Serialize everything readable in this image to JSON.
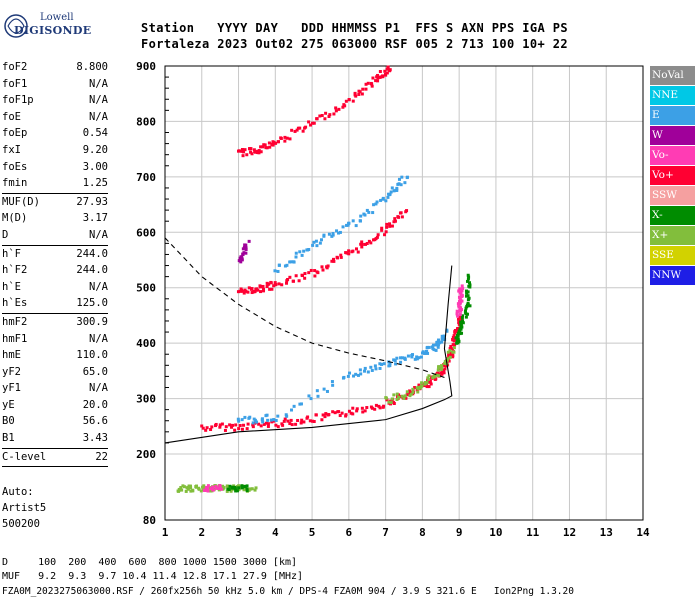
{
  "logo": {
    "line1": "Lowell",
    "line2": "DIGISONDE"
  },
  "header": {
    "line1": "Station   YYYY DAY   DDD HHMMSS P1  FFS S AXN PPS IGA PS",
    "line2": "Fortaleza 2023 Out02 275 063000 RSF 005 2 713 100 10+ 22"
  },
  "params": [
    {
      "k": "foF2",
      "v": "8.800"
    },
    {
      "k": "foF1",
      "v": "N/A"
    },
    {
      "k": "foF1p",
      "v": "N/A"
    },
    {
      "k": "foE",
      "v": "N/A"
    },
    {
      "k": "foEp",
      "v": "0.54"
    },
    {
      "k": "fxI",
      "v": "9.20"
    },
    {
      "k": "foEs",
      "v": "3.00"
    },
    {
      "k": "fmin",
      "v": "1.25"
    },
    {
      "sep": true
    },
    {
      "k": "MUF(D)",
      "v": "27.93"
    },
    {
      "k": "M(D)",
      "v": "3.17"
    },
    {
      "k": "D",
      "v": "N/A"
    },
    {
      "sep": true
    },
    {
      "k": "h`F",
      "v": "244.0"
    },
    {
      "k": "h`F2",
      "v": "244.0"
    },
    {
      "k": "h`E",
      "v": "N/A"
    },
    {
      "k": "h`Es",
      "v": "125.0"
    },
    {
      "sep": true
    },
    {
      "k": "hmF2",
      "v": "300.9"
    },
    {
      "k": "hmF1",
      "v": "N/A"
    },
    {
      "k": "hmE",
      "v": "110.0"
    },
    {
      "k": "yF2",
      "v": "65.0"
    },
    {
      "k": "yF1",
      "v": "N/A"
    },
    {
      "k": "yE",
      "v": "20.0"
    },
    {
      "k": "B0",
      "v": "56.6"
    },
    {
      "k": "B1",
      "v": "3.43"
    },
    {
      "sep": true
    },
    {
      "k": "C-level",
      "v": "22"
    },
    {
      "sep": true
    }
  ],
  "auto": {
    "l1": "Auto:",
    "l2": "Artist5",
    "l3": "500200"
  },
  "legend": [
    {
      "label": "NoVal",
      "color": "#8c8c8c"
    },
    {
      "label": "NNE",
      "color": "#00c8e6"
    },
    {
      "label": "E",
      "color": "#3ca0e6"
    },
    {
      "label": "W",
      "color": "#a0009a"
    },
    {
      "label": "Vo-",
      "color": "#ff3cb4"
    },
    {
      "label": "Vo+",
      "color": "#ff0032"
    },
    {
      "label": "SSW",
      "color": "#f5a0a0"
    },
    {
      "label": "X-",
      "color": "#008c00"
    },
    {
      "label": "X+",
      "color": "#82be3c"
    },
    {
      "label": "SSE",
      "color": "#d2d200"
    },
    {
      "label": "NNW",
      "color": "#1e1ee6"
    }
  ],
  "footer": {
    "l1": "D     100  200  400  600  800 1000 1500 3000 [km]",
    "l2": "MUF   9.2  9.3  9.7 10.4 11.4 12.8 17.1 27.9 [MHz]",
    "l3": "FZA0M_2023275063000.RSF / 260fx256h 50 kHz 5.0 km / DPS-4 FZA0M 904 / 3.9 S 321.6 E   Ion2Png 1.3.20"
  },
  "chart_data": {
    "type": "scatter",
    "xlim": [
      1,
      14
    ],
    "ylim": [
      80,
      900
    ],
    "xticks": [
      "1",
      "2",
      "3",
      "4",
      "5",
      "6",
      "7",
      "8",
      "9",
      "10",
      "11",
      "12",
      "13",
      "14"
    ],
    "yticks": [
      "80",
      "200",
      "300",
      "400",
      "500",
      "600",
      "700",
      "800",
      "900"
    ],
    "grid": true,
    "series": [
      {
        "color": "#ff0032",
        "points": [
          [
            2,
            250
          ],
          [
            3,
            252
          ],
          [
            4,
            258
          ],
          [
            5,
            266
          ],
          [
            6,
            278
          ],
          [
            7,
            295
          ],
          [
            7.6,
            310
          ],
          [
            8.1,
            330
          ],
          [
            8.5,
            352
          ],
          [
            8.7,
            375
          ],
          [
            8.85,
            410
          ],
          [
            9.0,
            450
          ]
        ]
      },
      {
        "color": "#ff0032",
        "points": [
          [
            3,
            495
          ],
          [
            3.5,
            500
          ],
          [
            4,
            508
          ],
          [
            5,
            530
          ],
          [
            6,
            565
          ],
          [
            6.8,
            600
          ],
          [
            7.5,
            640
          ]
        ]
      },
      {
        "color": "#ff0032",
        "points": [
          [
            3,
            745
          ],
          [
            3.5,
            752
          ],
          [
            4,
            765
          ],
          [
            5,
            800
          ],
          [
            6,
            840
          ],
          [
            6.7,
            880
          ],
          [
            7.1,
            900
          ]
        ]
      },
      {
        "color": "#3ca0e6",
        "points": [
          [
            3,
            262
          ],
          [
            4,
            268
          ],
          [
            6,
            345
          ],
          [
            7,
            365
          ],
          [
            7.8,
            378
          ],
          [
            8.3,
            395
          ],
          [
            8.6,
            420
          ]
        ]
      },
      {
        "color": "#3ca0e6",
        "points": [
          [
            4,
            535
          ],
          [
            5,
            580
          ],
          [
            6,
            615
          ],
          [
            7,
            665
          ],
          [
            7.5,
            700
          ]
        ]
      },
      {
        "color": "#008c00",
        "points": [
          [
            8.9,
            400
          ],
          [
            9.0,
            430
          ],
          [
            9.2,
            470
          ],
          [
            9.2,
            520
          ]
        ]
      },
      {
        "color": "#82be3c",
        "points": [
          [
            7,
            300
          ],
          [
            7.8,
            315
          ],
          [
            8.3,
            345
          ],
          [
            8.8,
            390
          ]
        ]
      },
      {
        "color": "#ff3cb4",
        "points": [
          [
            8.95,
            455
          ],
          [
            9.0,
            480
          ],
          [
            9.0,
            500
          ]
        ]
      },
      {
        "color": "#a0009a",
        "points": [
          [
            3,
            555
          ],
          [
            3.2,
            580
          ]
        ]
      }
    ],
    "profile": [
      [
        1,
        220
      ],
      [
        3,
        240
      ],
      [
        5,
        248
      ],
      [
        7,
        262
      ],
      [
        8,
        282
      ],
      [
        8.6,
        298
      ],
      [
        8.8,
        305
      ],
      [
        8.75,
        330
      ],
      [
        8.6,
        390
      ],
      [
        8.7,
        470
      ],
      [
        8.8,
        540
      ]
    ],
    "extrapolation": [
      [
        1,
        590
      ],
      [
        2,
        520
      ],
      [
        3,
        470
      ],
      [
        4,
        430
      ],
      [
        5,
        400
      ],
      [
        6,
        382
      ],
      [
        7,
        368
      ],
      [
        8,
        352
      ],
      [
        8.6,
        338
      ]
    ],
    "es_layer": [
      {
        "color": "#82be3c",
        "points": [
          [
            1.3,
            140
          ],
          [
            1.8,
            140
          ],
          [
            2.3,
            140
          ],
          [
            2.8,
            140
          ],
          [
            3.4,
            140
          ]
        ]
      },
      {
        "color": "#ff3cb4",
        "points": [
          [
            2,
            140
          ],
          [
            2.5,
            140
          ]
        ]
      },
      {
        "color": "#008c00",
        "points": [
          [
            2.7,
            140
          ],
          [
            3.2,
            140
          ]
        ]
      }
    ]
  }
}
